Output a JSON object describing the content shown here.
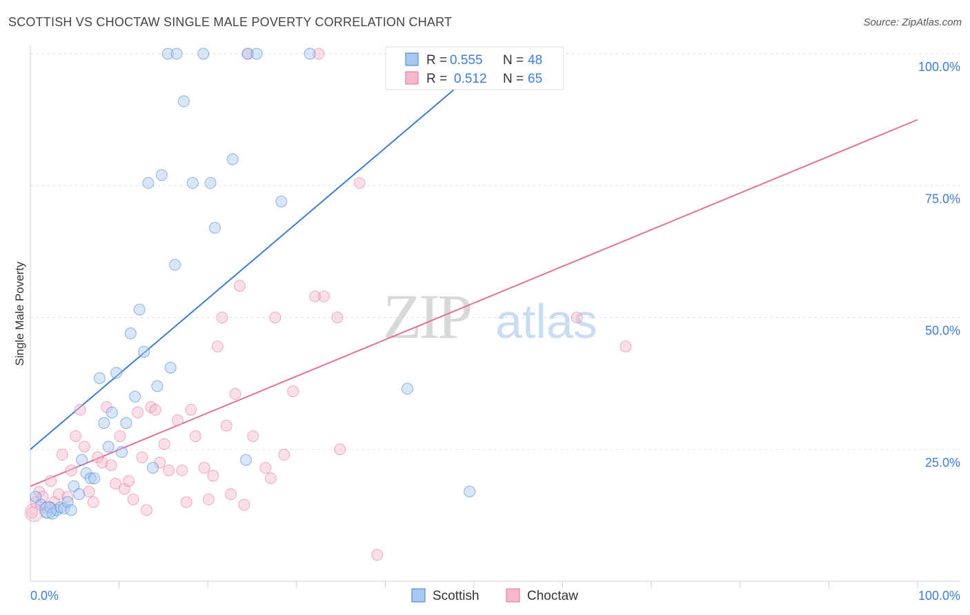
{
  "title": "SCOTTISH VS CHOCTAW SINGLE MALE POVERTY CORRELATION CHART",
  "source": "Source: ZipAtlas.com",
  "watermark": {
    "zip": "ZIP",
    "atlas": "atlas"
  },
  "colors": {
    "scottish": "#3a7bd5",
    "scottish_fill": "#a9c8f0",
    "choctaw": "#e0709a",
    "choctaw_fill": "#f5b8cc",
    "tick": "#3b7dd8"
  },
  "legend": {
    "rows": [
      {
        "r_label": "R =",
        "r_value": "0.555",
        "n_label": "N =",
        "n_value": "48"
      },
      {
        "r_label": "R =",
        "r_value": "0.512",
        "n_label": "N =",
        "n_value": "65"
      }
    ]
  },
  "bottom_legend": [
    "Scottish",
    "Choctaw"
  ],
  "chart_data": {
    "type": "scatter",
    "title": "SCOTTISH VS CHOCTAW SINGLE MALE POVERTY CORRELATION CHART",
    "xlabel": "",
    "ylabel": "Single Male Poverty",
    "xlim": [
      0,
      100
    ],
    "ylim": [
      0,
      100
    ],
    "x_tick_labels": [
      "0.0%",
      "100.0%"
    ],
    "y_tick_labels": [
      "25.0%",
      "50.0%",
      "75.0%",
      "100.0%"
    ],
    "y_ticks": [
      25,
      50,
      75,
      100
    ],
    "grid": true,
    "series": [
      {
        "name": "Scottish",
        "R": 0.555,
        "N": 48,
        "trend": {
          "x": [
            0,
            52.5
          ],
          "y": [
            25,
            100
          ]
        },
        "points": [
          [
            0.6,
            16
          ],
          [
            1.2,
            14.5
          ],
          [
            1.8,
            13
          ],
          [
            2.2,
            14
          ],
          [
            2.5,
            12.8
          ],
          [
            3.0,
            13.5
          ],
          [
            3.4,
            14
          ],
          [
            3.8,
            13.8
          ],
          [
            4.2,
            15
          ],
          [
            4.6,
            13.5
          ],
          [
            4.9,
            18
          ],
          [
            5.5,
            16.5
          ],
          [
            5.8,
            23
          ],
          [
            6.3,
            20.5
          ],
          [
            6.8,
            19.5
          ],
          [
            7.2,
            19.5
          ],
          [
            7.8,
            38.5
          ],
          [
            8.3,
            30
          ],
          [
            8.8,
            25.5
          ],
          [
            9.2,
            32
          ],
          [
            9.7,
            39.5
          ],
          [
            10.3,
            24.5
          ],
          [
            10.8,
            30
          ],
          [
            11.3,
            47
          ],
          [
            11.8,
            35
          ],
          [
            12.3,
            51.5
          ],
          [
            12.8,
            43.5
          ],
          [
            13.3,
            75.5
          ],
          [
            13.8,
            21.5
          ],
          [
            14.3,
            37
          ],
          [
            14.8,
            77
          ],
          [
            15.8,
            40.5
          ],
          [
            16.3,
            60
          ],
          [
            17.3,
            91
          ],
          [
            18.3,
            75.5
          ],
          [
            20.3,
            75.5
          ],
          [
            20.8,
            67
          ],
          [
            22.8,
            80
          ],
          [
            24.3,
            23
          ],
          [
            28.3,
            72
          ],
          [
            15.5,
            100
          ],
          [
            16.5,
            100
          ],
          [
            19.5,
            100
          ],
          [
            24.5,
            100
          ],
          [
            25.5,
            100
          ],
          [
            31.5,
            100
          ],
          [
            42.5,
            36.5
          ],
          [
            49.5,
            17
          ]
        ]
      },
      {
        "name": "Choctaw",
        "R": 0.512,
        "N": 65,
        "trend": {
          "x": [
            0,
            100
          ],
          "y": [
            18,
            87.5
          ]
        },
        "points": [
          [
            0.2,
            13
          ],
          [
            0.6,
            15
          ],
          [
            1.0,
            17
          ],
          [
            1.4,
            16
          ],
          [
            1.8,
            14
          ],
          [
            2.3,
            19
          ],
          [
            2.7,
            15
          ],
          [
            3.2,
            16.5
          ],
          [
            3.6,
            24
          ],
          [
            4.2,
            16
          ],
          [
            4.6,
            21
          ],
          [
            5.1,
            27.5
          ],
          [
            5.6,
            32.5
          ],
          [
            6.1,
            25.5
          ],
          [
            6.6,
            17
          ],
          [
            7.1,
            15
          ],
          [
            7.6,
            23.5
          ],
          [
            8.1,
            22.5
          ],
          [
            8.6,
            33
          ],
          [
            9.1,
            22
          ],
          [
            9.6,
            18.5
          ],
          [
            10.1,
            27.5
          ],
          [
            10.6,
            17.5
          ],
          [
            11.1,
            19
          ],
          [
            11.6,
            15.5
          ],
          [
            12.1,
            32
          ],
          [
            12.6,
            23.5
          ],
          [
            13.1,
            13.5
          ],
          [
            13.6,
            33
          ],
          [
            14.1,
            32.5
          ],
          [
            14.6,
            22.5
          ],
          [
            15.1,
            26
          ],
          [
            15.6,
            21
          ],
          [
            16.6,
            30.5
          ],
          [
            17.1,
            21
          ],
          [
            17.6,
            15
          ],
          [
            18.1,
            32.5
          ],
          [
            18.6,
            27.5
          ],
          [
            19.6,
            21.5
          ],
          [
            20.1,
            15.5
          ],
          [
            20.6,
            20
          ],
          [
            21.1,
            44.5
          ],
          [
            21.6,
            50
          ],
          [
            22.1,
            29.5
          ],
          [
            22.6,
            16.5
          ],
          [
            23.1,
            35.5
          ],
          [
            23.6,
            56
          ],
          [
            24.1,
            14.5
          ],
          [
            25.1,
            27.5
          ],
          [
            26.5,
            21.5
          ],
          [
            27.1,
            19.5
          ],
          [
            27.6,
            50
          ],
          [
            28.6,
            24
          ],
          [
            29.6,
            36
          ],
          [
            32.1,
            54
          ],
          [
            33.1,
            54
          ],
          [
            34.6,
            50
          ],
          [
            34.9,
            25
          ],
          [
            37.1,
            75.5
          ],
          [
            39.1,
            5
          ],
          [
            61.6,
            50
          ],
          [
            67.1,
            44.5
          ],
          [
            24.5,
            100
          ],
          [
            32.5,
            100
          ],
          [
            53.5,
            100
          ]
        ]
      }
    ]
  }
}
